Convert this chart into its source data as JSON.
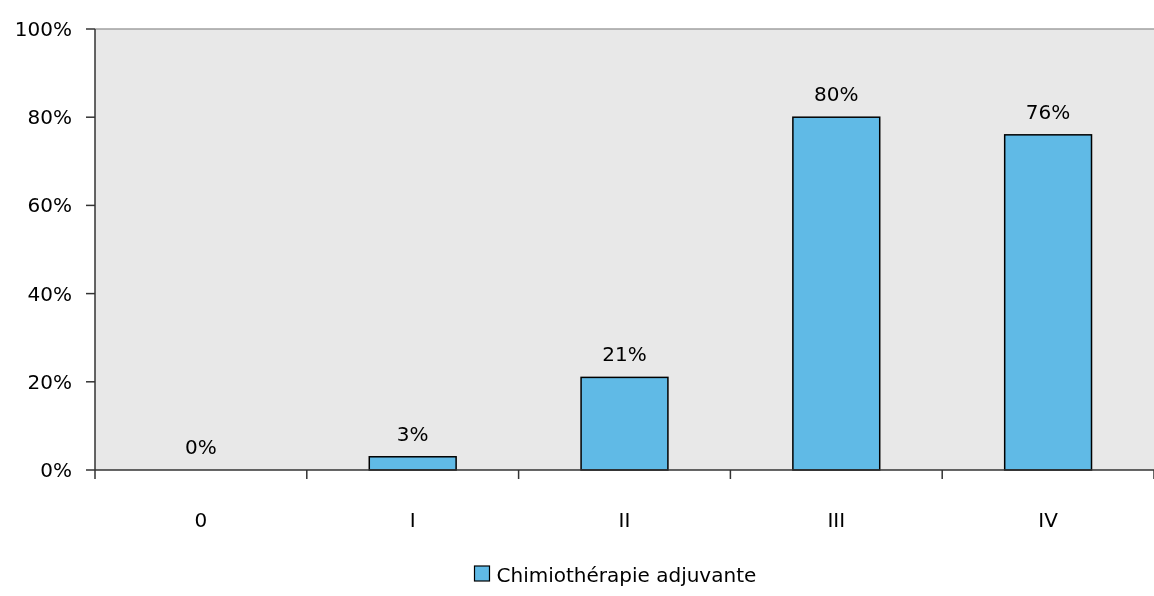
{
  "chart_data": {
    "type": "bar",
    "categories": [
      "0",
      "I",
      "II",
      "III",
      "IV"
    ],
    "series": [
      {
        "name": "Chimiothérapie adjuvante",
        "color": "#60bae6",
        "values": [
          0,
          3,
          21,
          80,
          76
        ]
      }
    ],
    "ylim": [
      0,
      100
    ],
    "yticks": [
      {
        "value": 0,
        "label": "0%"
      },
      {
        "value": 20,
        "label": "20%"
      },
      {
        "value": 40,
        "label": "40%"
      },
      {
        "value": 60,
        "label": "60%"
      },
      {
        "value": 80,
        "label": "80%"
      },
      {
        "value": 100,
        "label": "100%"
      }
    ],
    "value_labels": [
      "0%",
      "3%",
      "21%",
      "80%",
      "76%"
    ],
    "legend": "bottom",
    "grid": false
  }
}
